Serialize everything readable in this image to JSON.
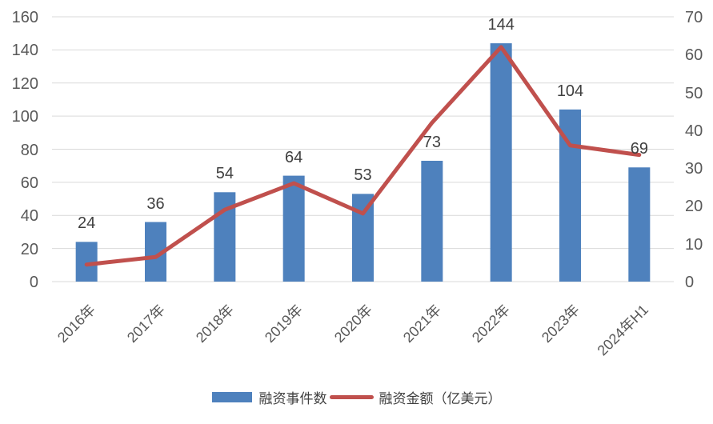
{
  "chart_data": {
    "type": "bar+line dual-axis combo",
    "title": "",
    "categories": [
      "2016年",
      "2017年",
      "2018年",
      "2019年",
      "2020年",
      "2021年",
      "2022年",
      "2023年",
      "2024年H1"
    ],
    "series": [
      {
        "name": "融资事件数",
        "type": "bar",
        "axis": "left",
        "color": "#4E81BD",
        "values": [
          24,
          36,
          54,
          64,
          53,
          73,
          144,
          104,
          69
        ],
        "data_labels": [
          24,
          36,
          54,
          64,
          53,
          73,
          144,
          104,
          69
        ]
      },
      {
        "name": "融资金额（亿美元）",
        "type": "line",
        "axis": "right",
        "color": "#C0504D",
        "values": [
          4.5,
          6.5,
          19,
          26,
          18,
          42,
          62,
          36,
          33.5
        ],
        "data_labels": false
      }
    ],
    "left_axis": {
      "min": 0,
      "max": 160,
      "step": 20,
      "tick_labels": [
        "0",
        "20",
        "40",
        "60",
        "80",
        "100",
        "120",
        "140",
        "160"
      ]
    },
    "right_axis": {
      "min": 0,
      "max": 70,
      "step": 10,
      "tick_labels": [
        "0",
        "10",
        "20",
        "30",
        "40",
        "50",
        "60",
        "70"
      ]
    },
    "grid": true,
    "legend_position": "bottom",
    "colors": {
      "bar": "#4E81BD",
      "line": "#C0504D",
      "gridline": "#D9D9D9",
      "axis_text": "#595959",
      "data_label_text": "#404040",
      "background": "#FFFFFF"
    }
  }
}
